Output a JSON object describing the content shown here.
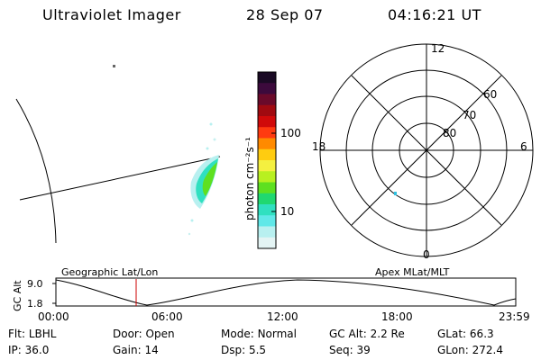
{
  "header": {
    "instrument": "Ultraviolet Imager",
    "date": "28 Sep 07",
    "time": "04:16:21 UT"
  },
  "colorbar": {
    "unit_label": "photon cm⁻²s⁻¹",
    "ticks": [
      "100",
      "10"
    ],
    "colors": [
      "#1a0a24",
      "#3c0a3c",
      "#6a0a2a",
      "#a00a10",
      "#d00a0a",
      "#ff3a10",
      "#ff8a00",
      "#ffcc10",
      "#f4f040",
      "#b8f020",
      "#5ee020",
      "#20d870",
      "#30e0c0",
      "#60e8e8",
      "#b8f0f0",
      "#e4f4f4"
    ]
  },
  "polar": {
    "mlt_labels": {
      "top": "12",
      "bottom": "0",
      "left": "18",
      "right": "6"
    },
    "lat_labels": [
      "60",
      "70",
      "80"
    ]
  },
  "track": {
    "y_axis_label": "GC Alt",
    "y_ticks": [
      "9.0",
      "1.8"
    ],
    "left_title": "Geographic Lat/Lon",
    "right_title": "Apex MLat/MLT",
    "x_ticks": [
      "00:00",
      "06:00",
      "12:00",
      "18:00",
      "23:59"
    ],
    "marker_color": "#cc0000"
  },
  "info": {
    "row1": [
      {
        "key": "Flt:",
        "value": "LBHL"
      },
      {
        "key": "Door:",
        "value": "Open"
      },
      {
        "key": "Mode:",
        "value": "Normal"
      },
      {
        "key": "GC Alt:",
        "value": "2.2 Re"
      },
      {
        "key": "GLat:",
        "value": "66.3"
      }
    ],
    "row2": [
      {
        "key": "IP:",
        "value": "36.0"
      },
      {
        "key": "Gain:",
        "value": "14"
      },
      {
        "key": "Dsp:",
        "value": "5.5"
      },
      {
        "key": "Seq:",
        "value": "39"
      },
      {
        "key": "GLon:",
        "value": "272.4"
      }
    ]
  }
}
